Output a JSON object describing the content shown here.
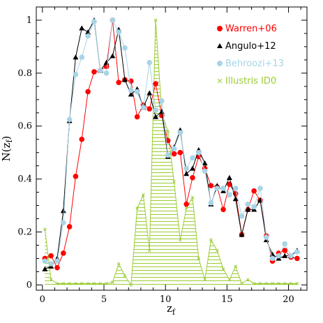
{
  "chart_data": {
    "type": "line",
    "xlabel": "z_f",
    "ylabel": "N(z_f)",
    "xlim": [
      -0.5,
      21.5
    ],
    "ylim": [
      -0.02,
      1.05
    ],
    "x_ticks": [
      0,
      5,
      10,
      15,
      20
    ],
    "y_ticks": [
      0,
      0.2,
      0.4,
      0.6,
      0.8,
      1
    ],
    "y_tick_labels": [
      "0",
      "0.2",
      "0.4",
      "0.6",
      "0.8",
      "1"
    ],
    "legend_position": "top-right",
    "series": [
      {
        "name": "Warren+06",
        "color": "#ff0000",
        "marker": "circle",
        "x": [
          0.2,
          0.7,
          1.2,
          1.7,
          2.2,
          2.7,
          3.2,
          3.7,
          4.2,
          4.7,
          5.2,
          5.7,
          6.2,
          6.7,
          7.2,
          7.7,
          8.2,
          8.7,
          9.2,
          9.7,
          10.2,
          10.7,
          11.2,
          11.7,
          12.2,
          12.7,
          13.2,
          13.7,
          14.2,
          14.7,
          15.2,
          15.7,
          16.2,
          16.7,
          17.2,
          17.7,
          18.2,
          18.7,
          19.2,
          19.7,
          20.2,
          20.7
        ],
        "y": [
          0.1,
          0.11,
          0.065,
          0.12,
          0.22,
          0.41,
          0.55,
          0.73,
          0.805,
          0.81,
          0.825,
          1.0,
          0.765,
          0.775,
          0.77,
          0.635,
          0.68,
          0.665,
          0.76,
          0.64,
          0.545,
          0.495,
          0.5,
          0.305,
          0.405,
          0.485,
          0.44,
          0.375,
          0.37,
          0.285,
          0.38,
          0.345,
          0.19,
          0.285,
          0.355,
          0.32,
          0.185,
          0.09,
          0.12,
          0.13,
          0.105,
          0.1
        ]
      },
      {
        "name": "Angulo+12",
        "color": "#000000",
        "marker": "triangle",
        "x": [
          0.2,
          0.7,
          1.2,
          1.7,
          2.2,
          2.7,
          3.2,
          3.7,
          4.2,
          4.7,
          5.2,
          5.7,
          6.2,
          6.7,
          7.2,
          7.7,
          8.2,
          8.7,
          9.2,
          9.7,
          10.2,
          10.7,
          11.2,
          11.7,
          12.2,
          12.7,
          13.2,
          13.7,
          14.2,
          14.7,
          15.2,
          15.7,
          16.2,
          16.7,
          17.2,
          17.7,
          18.2,
          18.7,
          19.2,
          19.7,
          20.2,
          20.7
        ],
        "y": [
          0.06,
          0.07,
          0.1,
          0.28,
          0.62,
          0.86,
          0.97,
          0.955,
          1.0,
          0.81,
          0.84,
          0.865,
          0.965,
          0.775,
          0.72,
          0.74,
          0.67,
          0.725,
          0.635,
          0.655,
          0.485,
          0.52,
          0.585,
          0.42,
          0.44,
          0.51,
          0.46,
          0.305,
          0.375,
          0.355,
          0.405,
          0.325,
          0.19,
          0.285,
          0.285,
          0.32,
          0.17,
          0.115,
          0.1,
          0.11,
          0.11,
          0.13
        ]
      },
      {
        "name": "Behroozi+13",
        "color": "#a8d4e6",
        "marker": "circle",
        "x": [
          0.2,
          0.7,
          1.2,
          1.7,
          2.2,
          2.7,
          3.2,
          3.7,
          4.2,
          4.7,
          5.2,
          5.7,
          6.2,
          6.7,
          7.2,
          7.7,
          8.2,
          8.7,
          9.2,
          9.7,
          10.2,
          10.7,
          11.2,
          11.7,
          12.2,
          12.7,
          13.2,
          13.7,
          14.2,
          14.7,
          15.2,
          15.7,
          16.2,
          16.7,
          17.2,
          17.7,
          18.2,
          18.7,
          19.2,
          19.7,
          20.2,
          20.7
        ],
        "y": [
          0.09,
          0.08,
          0.09,
          0.235,
          0.625,
          0.795,
          0.86,
          0.94,
          0.995,
          0.81,
          0.8,
          1.0,
          0.955,
          0.895,
          0.735,
          0.73,
          0.67,
          0.84,
          0.66,
          0.695,
          0.49,
          0.515,
          0.575,
          0.44,
          0.48,
          0.5,
          0.43,
          0.31,
          0.365,
          0.365,
          0.34,
          0.365,
          0.26,
          0.305,
          0.295,
          0.365,
          0.18,
          0.1,
          0.11,
          0.155,
          0.11,
          0.125
        ]
      },
      {
        "name": "Illustris ID0",
        "color": "#99cc33",
        "marker": "x",
        "fill": "hatch",
        "x": [
          0.2,
          0.7,
          1.2,
          1.7,
          2.2,
          2.7,
          3.2,
          3.7,
          4.2,
          4.7,
          5.2,
          5.7,
          6.2,
          6.7,
          7.2,
          7.7,
          8.2,
          8.7,
          9.2,
          9.7,
          10.2,
          10.7,
          11.2,
          11.7,
          12.2,
          12.7,
          13.2,
          13.7,
          14.2,
          14.7,
          15.2,
          15.7,
          16.2,
          16.7,
          17.2,
          17.7,
          18.2,
          18.7,
          19.2,
          19.7,
          20.2,
          20.7
        ],
        "y": [
          0.21,
          0.02,
          0.005,
          0.005,
          0.005,
          0.005,
          0.005,
          0.005,
          0.005,
          0.005,
          0.005,
          0.01,
          0.08,
          0.035,
          0.0,
          0.29,
          0.34,
          0.13,
          1.0,
          0.65,
          0.58,
          0.39,
          0.17,
          0.29,
          0.33,
          0.1,
          0.02,
          0.17,
          0.13,
          0.06,
          0.02,
          0.07,
          0.005,
          0.02,
          0.005,
          0.005,
          0.005,
          0.005,
          0.005,
          0.005,
          0.005,
          0.005
        ]
      }
    ]
  }
}
